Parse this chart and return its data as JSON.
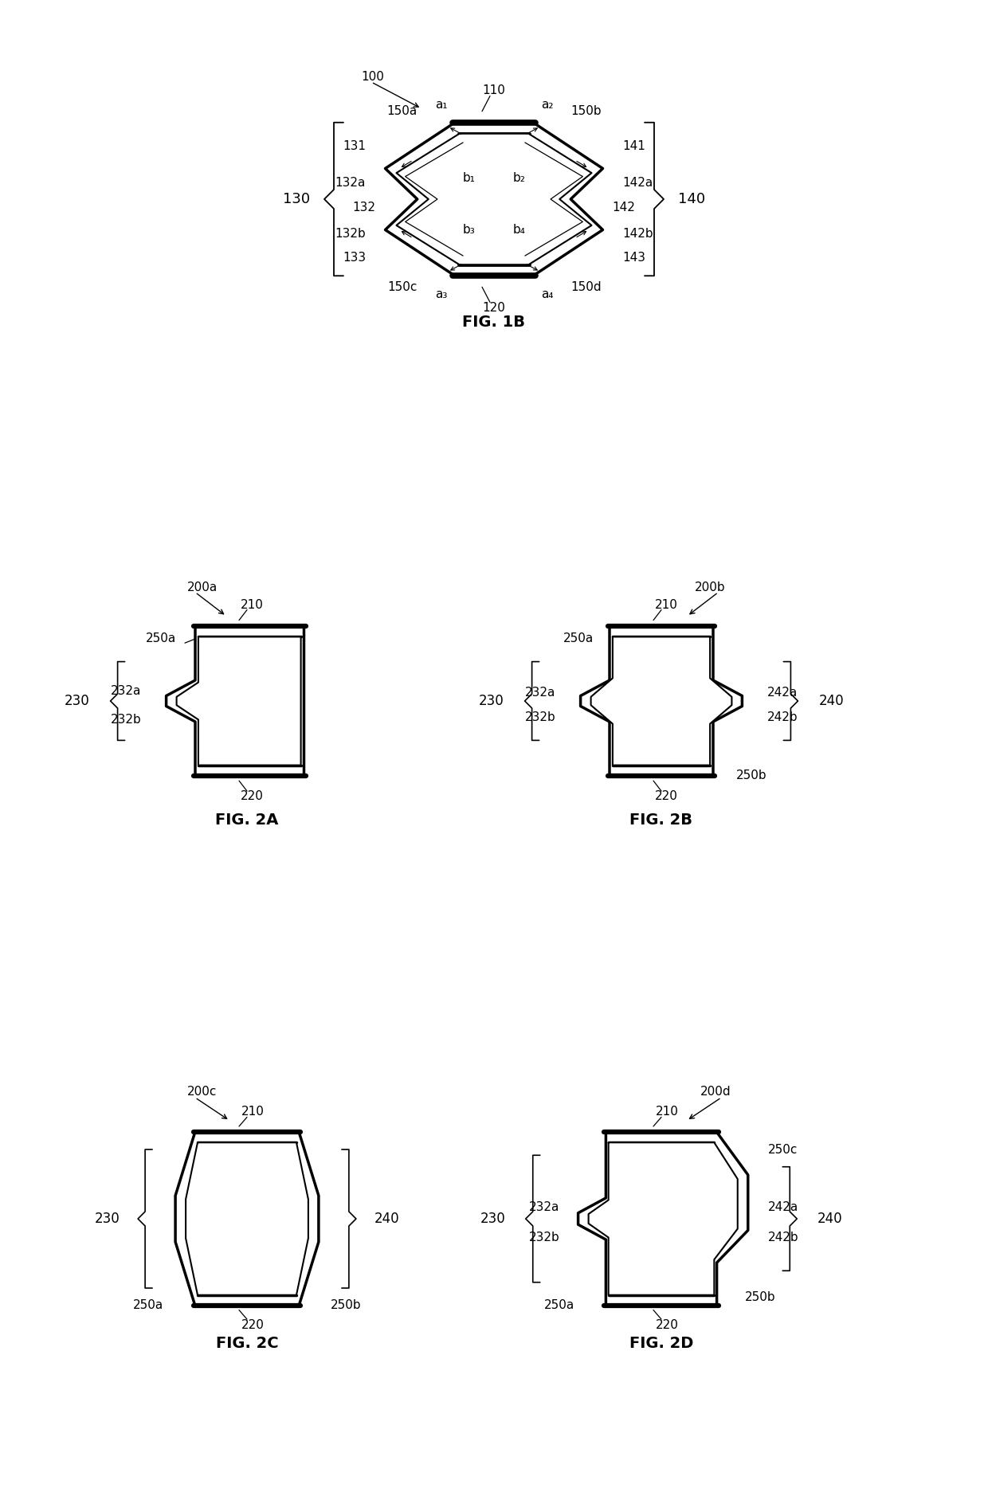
{
  "bg_color": "#ffffff",
  "line_color": "#000000",
  "thick_line": 2.5,
  "thin_line": 1.5,
  "font_size_label": 11,
  "font_size_fig": 14,
  "fig1b_title": "FIG. 1B",
  "fig2a_title": "FIG. 2A",
  "fig2b_title": "FIG. 2B",
  "fig2c_title": "FIG. 2C",
  "fig2d_title": "FIG. 2D"
}
